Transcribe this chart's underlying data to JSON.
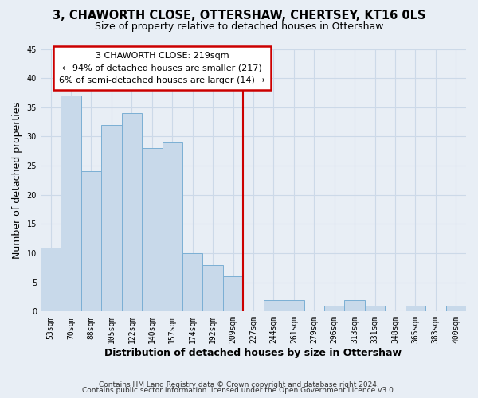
{
  "title": "3, CHAWORTH CLOSE, OTTERSHAW, CHERTSEY, KT16 0LS",
  "subtitle": "Size of property relative to detached houses in Ottershaw",
  "xlabel": "Distribution of detached houses by size in Ottershaw",
  "ylabel": "Number of detached properties",
  "bar_color": "#c8d9ea",
  "bar_edge_color": "#7bafd4",
  "background_color": "#e8eef5",
  "grid_color": "#ccd9e8",
  "bin_labels": [
    "53sqm",
    "70sqm",
    "88sqm",
    "105sqm",
    "122sqm",
    "140sqm",
    "157sqm",
    "174sqm",
    "192sqm",
    "209sqm",
    "227sqm",
    "244sqm",
    "261sqm",
    "279sqm",
    "296sqm",
    "313sqm",
    "331sqm",
    "348sqm",
    "365sqm",
    "383sqm",
    "400sqm"
  ],
  "bar_heights": [
    11,
    37,
    24,
    32,
    34,
    28,
    29,
    10,
    8,
    6,
    0,
    2,
    2,
    0,
    1,
    2,
    1,
    0,
    1,
    0,
    1
  ],
  "ylim": [
    0,
    45
  ],
  "yticks": [
    0,
    5,
    10,
    15,
    20,
    25,
    30,
    35,
    40,
    45
  ],
  "annotation_line1": "3 CHAWORTH CLOSE: 219sqm",
  "annotation_line2": "← 94% of detached houses are smaller (217)",
  "annotation_line3": "6% of semi-detached houses are larger (14) →",
  "annotation_box_color": "#ffffff",
  "annotation_box_edge": "#cc0000",
  "marker_line_color": "#cc0000",
  "footer1": "Contains HM Land Registry data © Crown copyright and database right 2024.",
  "footer2": "Contains public sector information licensed under the Open Government Licence v3.0.",
  "title_fontsize": 10.5,
  "subtitle_fontsize": 9,
  "axis_label_fontsize": 9,
  "tick_fontsize": 7,
  "annotation_fontsize": 8,
  "footer_fontsize": 6.5
}
